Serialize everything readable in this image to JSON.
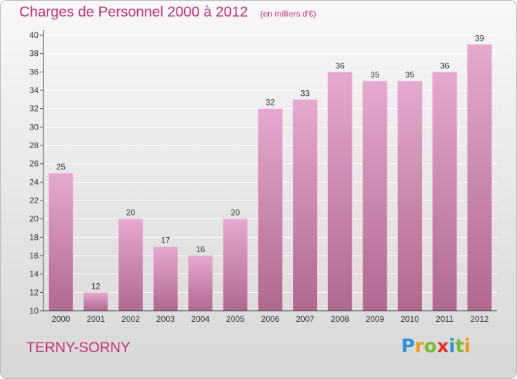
{
  "title": "Charges de Personnel 2000 à 2012",
  "subtitle": "(en milliers d'€)",
  "town": "TERNY-SORNY",
  "logo": {
    "letters": [
      "P",
      "r",
      "o",
      "x",
      "i",
      "t",
      "i"
    ],
    "colors": [
      "#2f8fd8",
      "#f29a1e",
      "#7dbb2e",
      "#e8332a",
      "#2f8fd8",
      "#7dbb2e",
      "#f29a1e"
    ]
  },
  "colors": {
    "bar_top": "#e6a9cf",
    "bar_bottom": "#b0688f",
    "text_accent": "#c0317b"
  },
  "chart_data": {
    "type": "bar",
    "title": "Charges de Personnel 2000 à 2012",
    "subtitle": "(en milliers d'€)",
    "categories": [
      "2000",
      "2001",
      "2002",
      "2003",
      "2004",
      "2005",
      "2006",
      "2007",
      "2008",
      "2009",
      "2010",
      "2011",
      "2012"
    ],
    "values": [
      25,
      12,
      20,
      17,
      16,
      20,
      32,
      33,
      36,
      35,
      35,
      36,
      39
    ],
    "ylim": [
      10,
      40
    ],
    "yticks": [
      10,
      12,
      14,
      16,
      18,
      20,
      22,
      24,
      26,
      28,
      30,
      32,
      34,
      36,
      38,
      40
    ],
    "grid": true,
    "xlabel": "",
    "ylabel": ""
  }
}
